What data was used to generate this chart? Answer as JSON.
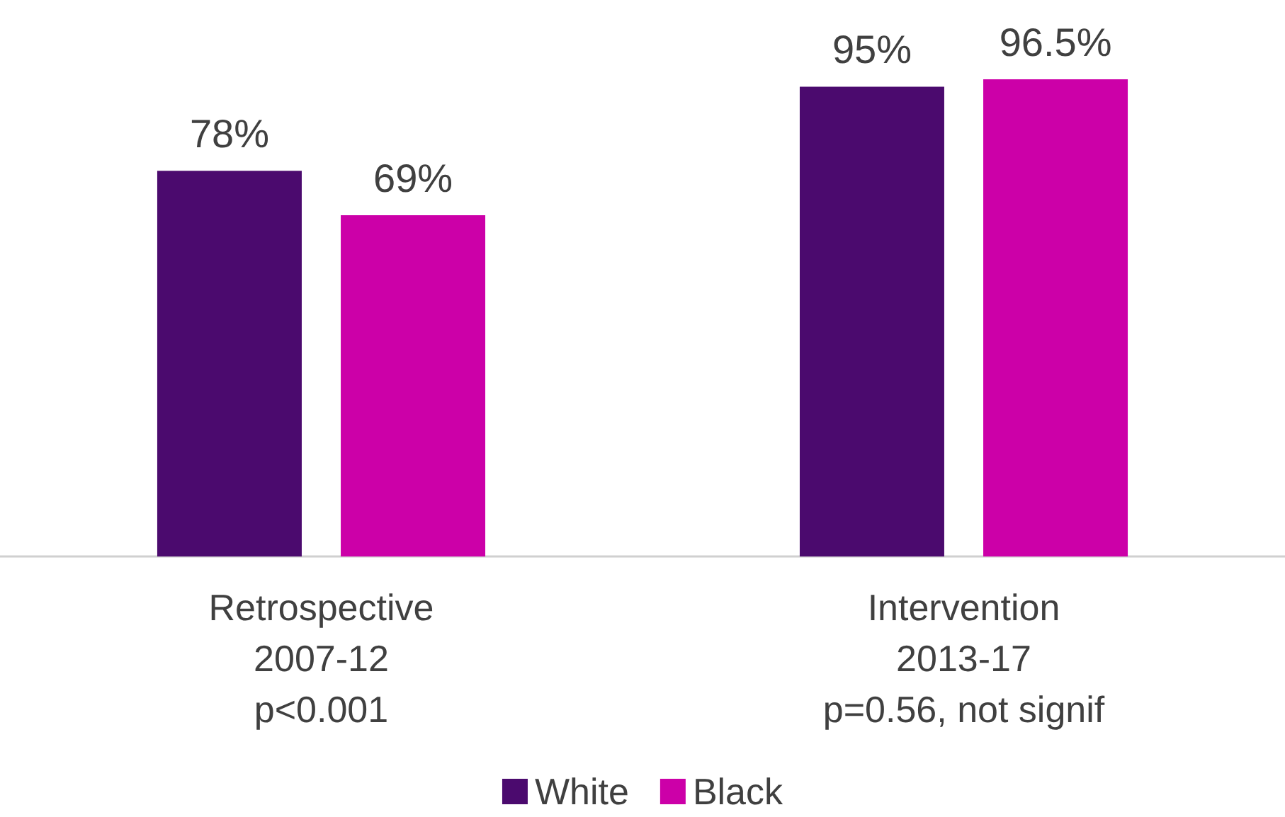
{
  "chart_data": {
    "type": "bar",
    "categories": [
      "Retrospective\n2007-12\np<0.001",
      "Intervention\n2013-17\np=0.56, not signif"
    ],
    "series": [
      {
        "name": "White",
        "color": "#4b0a6e",
        "values": [
          78,
          95
        ],
        "value_labels": [
          "78%",
          "95%"
        ]
      },
      {
        "name": "Black",
        "color": "#cc00a8",
        "values": [
          69,
          96.5
        ],
        "value_labels": [
          "69%",
          "96.5%"
        ]
      }
    ],
    "tick_labels": "x",
    "legend": "bottom"
  }
}
